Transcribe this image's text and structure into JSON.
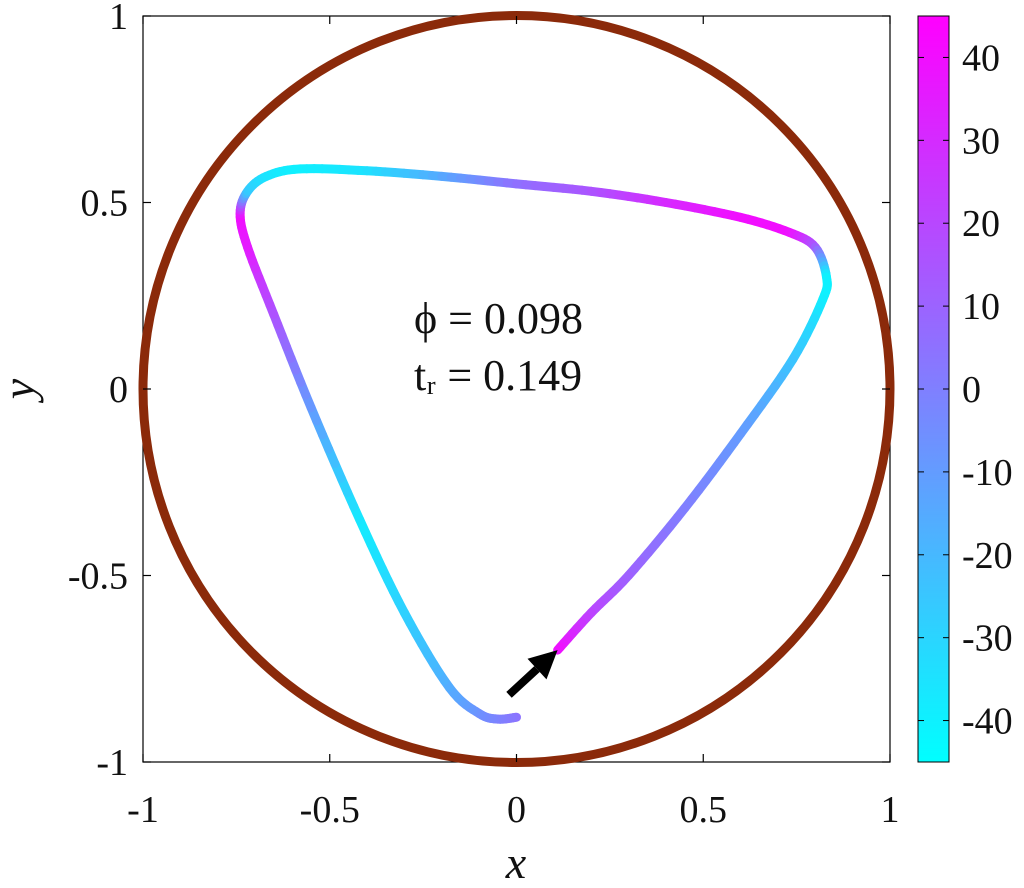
{
  "chart_data": {
    "type": "scatter",
    "title": "",
    "xlabel": "x",
    "ylabel": "y",
    "xlim": [
      -1,
      1
    ],
    "ylim": [
      -1,
      1
    ],
    "xticks": [
      -1,
      -0.5,
      0,
      0.5,
      1
    ],
    "xtick_labels": [
      "-1",
      "-0.5",
      "0",
      "0.5",
      "1"
    ],
    "yticks": [
      -1,
      -0.5,
      0,
      0.5,
      1
    ],
    "ytick_labels": [
      "-1",
      "-0.5",
      "0",
      "0.5",
      "1"
    ],
    "grid": false,
    "boundary_circle": {
      "center": [
        0,
        0
      ],
      "radius": 1,
      "color": "#8B2A0A"
    },
    "annotations": [
      {
        "text": "ϕ = 0.098",
        "x": 0.08,
        "y": 0.2
      },
      {
        "text": "tᵣ = 0.149",
        "x": 0.08,
        "y": 0.01
      }
    ],
    "arrow": {
      "from": [
        -0.02,
        -0.82
      ],
      "to": [
        0.11,
        -0.7
      ],
      "color": "#000000"
    },
    "trajectory": {
      "colormap": "cool",
      "color_low": "#00FFFF",
      "color_high": "#FF00FF",
      "x": [
        0.0,
        -0.05,
        -0.1,
        -0.18,
        -0.3,
        -0.42,
        -0.55,
        -0.65,
        -0.72,
        -0.74,
        -0.72,
        -0.67,
        -0.58,
        -0.4,
        -0.2,
        0.0,
        0.2,
        0.4,
        0.6,
        0.73,
        0.8,
        0.83,
        0.82,
        0.74,
        0.6,
        0.45,
        0.3,
        0.2,
        0.11
      ],
      "y": [
        -0.88,
        -0.885,
        -0.87,
        -0.8,
        -0.6,
        -0.35,
        -0.05,
        0.2,
        0.38,
        0.47,
        0.53,
        0.57,
        0.59,
        0.585,
        0.57,
        0.55,
        0.53,
        0.5,
        0.46,
        0.42,
        0.38,
        0.3,
        0.24,
        0.08,
        -0.12,
        -0.32,
        -0.5,
        -0.6,
        -0.7
      ],
      "c": [
        5,
        0,
        -5,
        -15,
        -28,
        -38,
        -10,
        15,
        35,
        40,
        -25,
        -35,
        -40,
        -35,
        -15,
        5,
        15,
        30,
        40,
        40,
        15,
        -40,
        -40,
        -25,
        -10,
        0,
        10,
        20,
        40
      ]
    },
    "colorbar": {
      "min": -45,
      "max": 45,
      "ticks": [
        40,
        30,
        20,
        10,
        0,
        -10,
        -20,
        -30,
        -40
      ],
      "tick_labels": [
        "40",
        "30",
        "20",
        "10",
        "0",
        "-10",
        "-20",
        "-30",
        "-40"
      ]
    }
  }
}
